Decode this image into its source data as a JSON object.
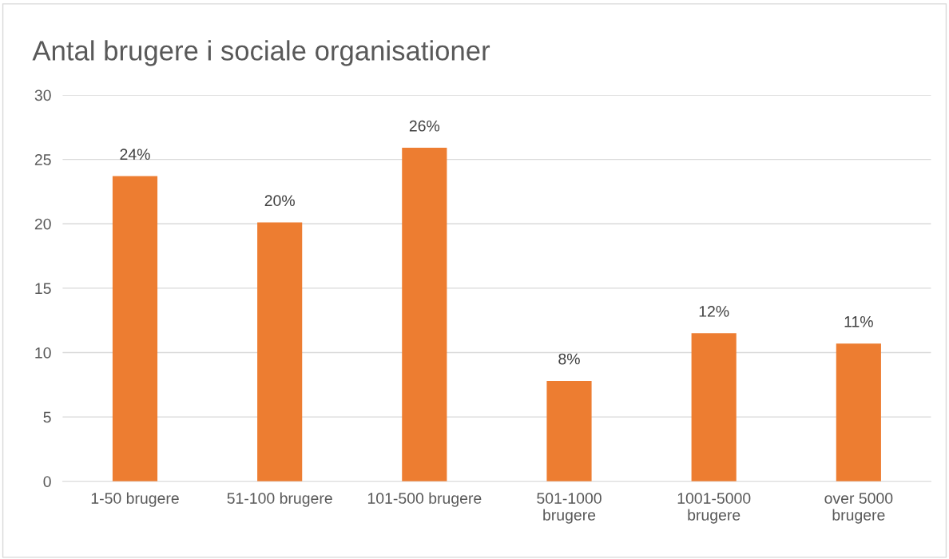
{
  "chart_data": {
    "type": "bar",
    "title": "Antal brugere i sociale organisationer",
    "categories": [
      "1-50 brugere",
      "51-100 brugere",
      "101-500 brugere",
      "501-1000\nbrugere",
      "1001-5000\nbrugere",
      "over 5000\nbrugere"
    ],
    "values": [
      23.7,
      20.1,
      25.9,
      7.8,
      11.5,
      10.7
    ],
    "value_labels": [
      "24%",
      "20%",
      "26%",
      "8%",
      "12%",
      "11%"
    ],
    "color": "#ed7d31",
    "ylim": [
      0,
      30
    ],
    "yticks": [
      0,
      5,
      10,
      15,
      20,
      25,
      30
    ],
    "grid": "y"
  }
}
